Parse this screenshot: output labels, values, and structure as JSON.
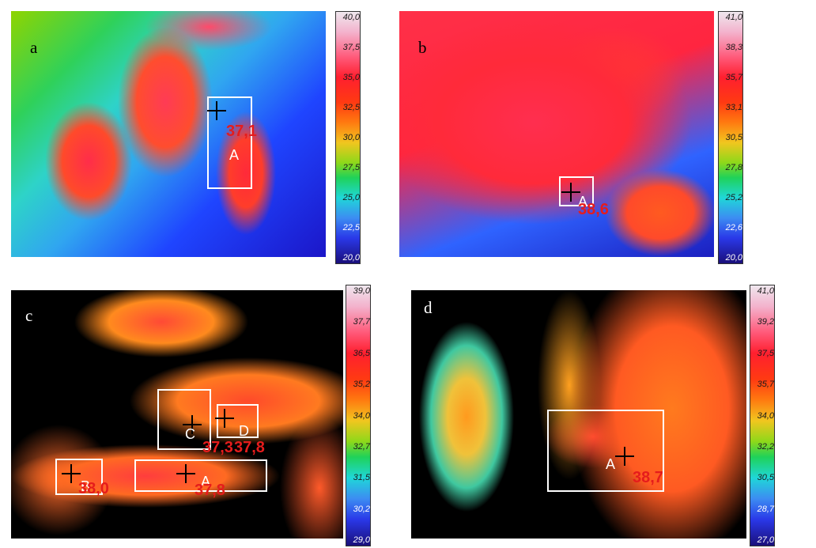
{
  "panels": [
    {
      "letter": "a",
      "reading": "37,1",
      "roi_label": "A",
      "scale_ticks": [
        "40,0",
        "37,5",
        "35,0",
        "32,5",
        "30,0",
        "27,5",
        "25,0",
        "22,5",
        "20,0"
      ]
    },
    {
      "letter": "b",
      "reading": "38,6",
      "roi_label": "A",
      "scale_ticks": [
        "41,0",
        "38,3",
        "35,7",
        "33,1",
        "30,5",
        "27,8",
        "25,2",
        "22,6",
        "20,0"
      ]
    },
    {
      "letter": "c",
      "readings": [
        "37,3",
        "37,8",
        "38,0",
        "37,8"
      ],
      "roi_labels": [
        "C",
        "D",
        "B",
        "A"
      ],
      "scale_ticks": [
        "39,0",
        "37,7",
        "36,5",
        "35,2",
        "34,0",
        "32,7",
        "31,5",
        "30,2",
        "29,0"
      ]
    },
    {
      "letter": "d",
      "reading": "38,7",
      "roi_label": "A",
      "scale_ticks": [
        "41,0",
        "39,2",
        "37,5",
        "35,7",
        "34,0",
        "32,2",
        "30,5",
        "28,7",
        "27,0"
      ]
    }
  ]
}
